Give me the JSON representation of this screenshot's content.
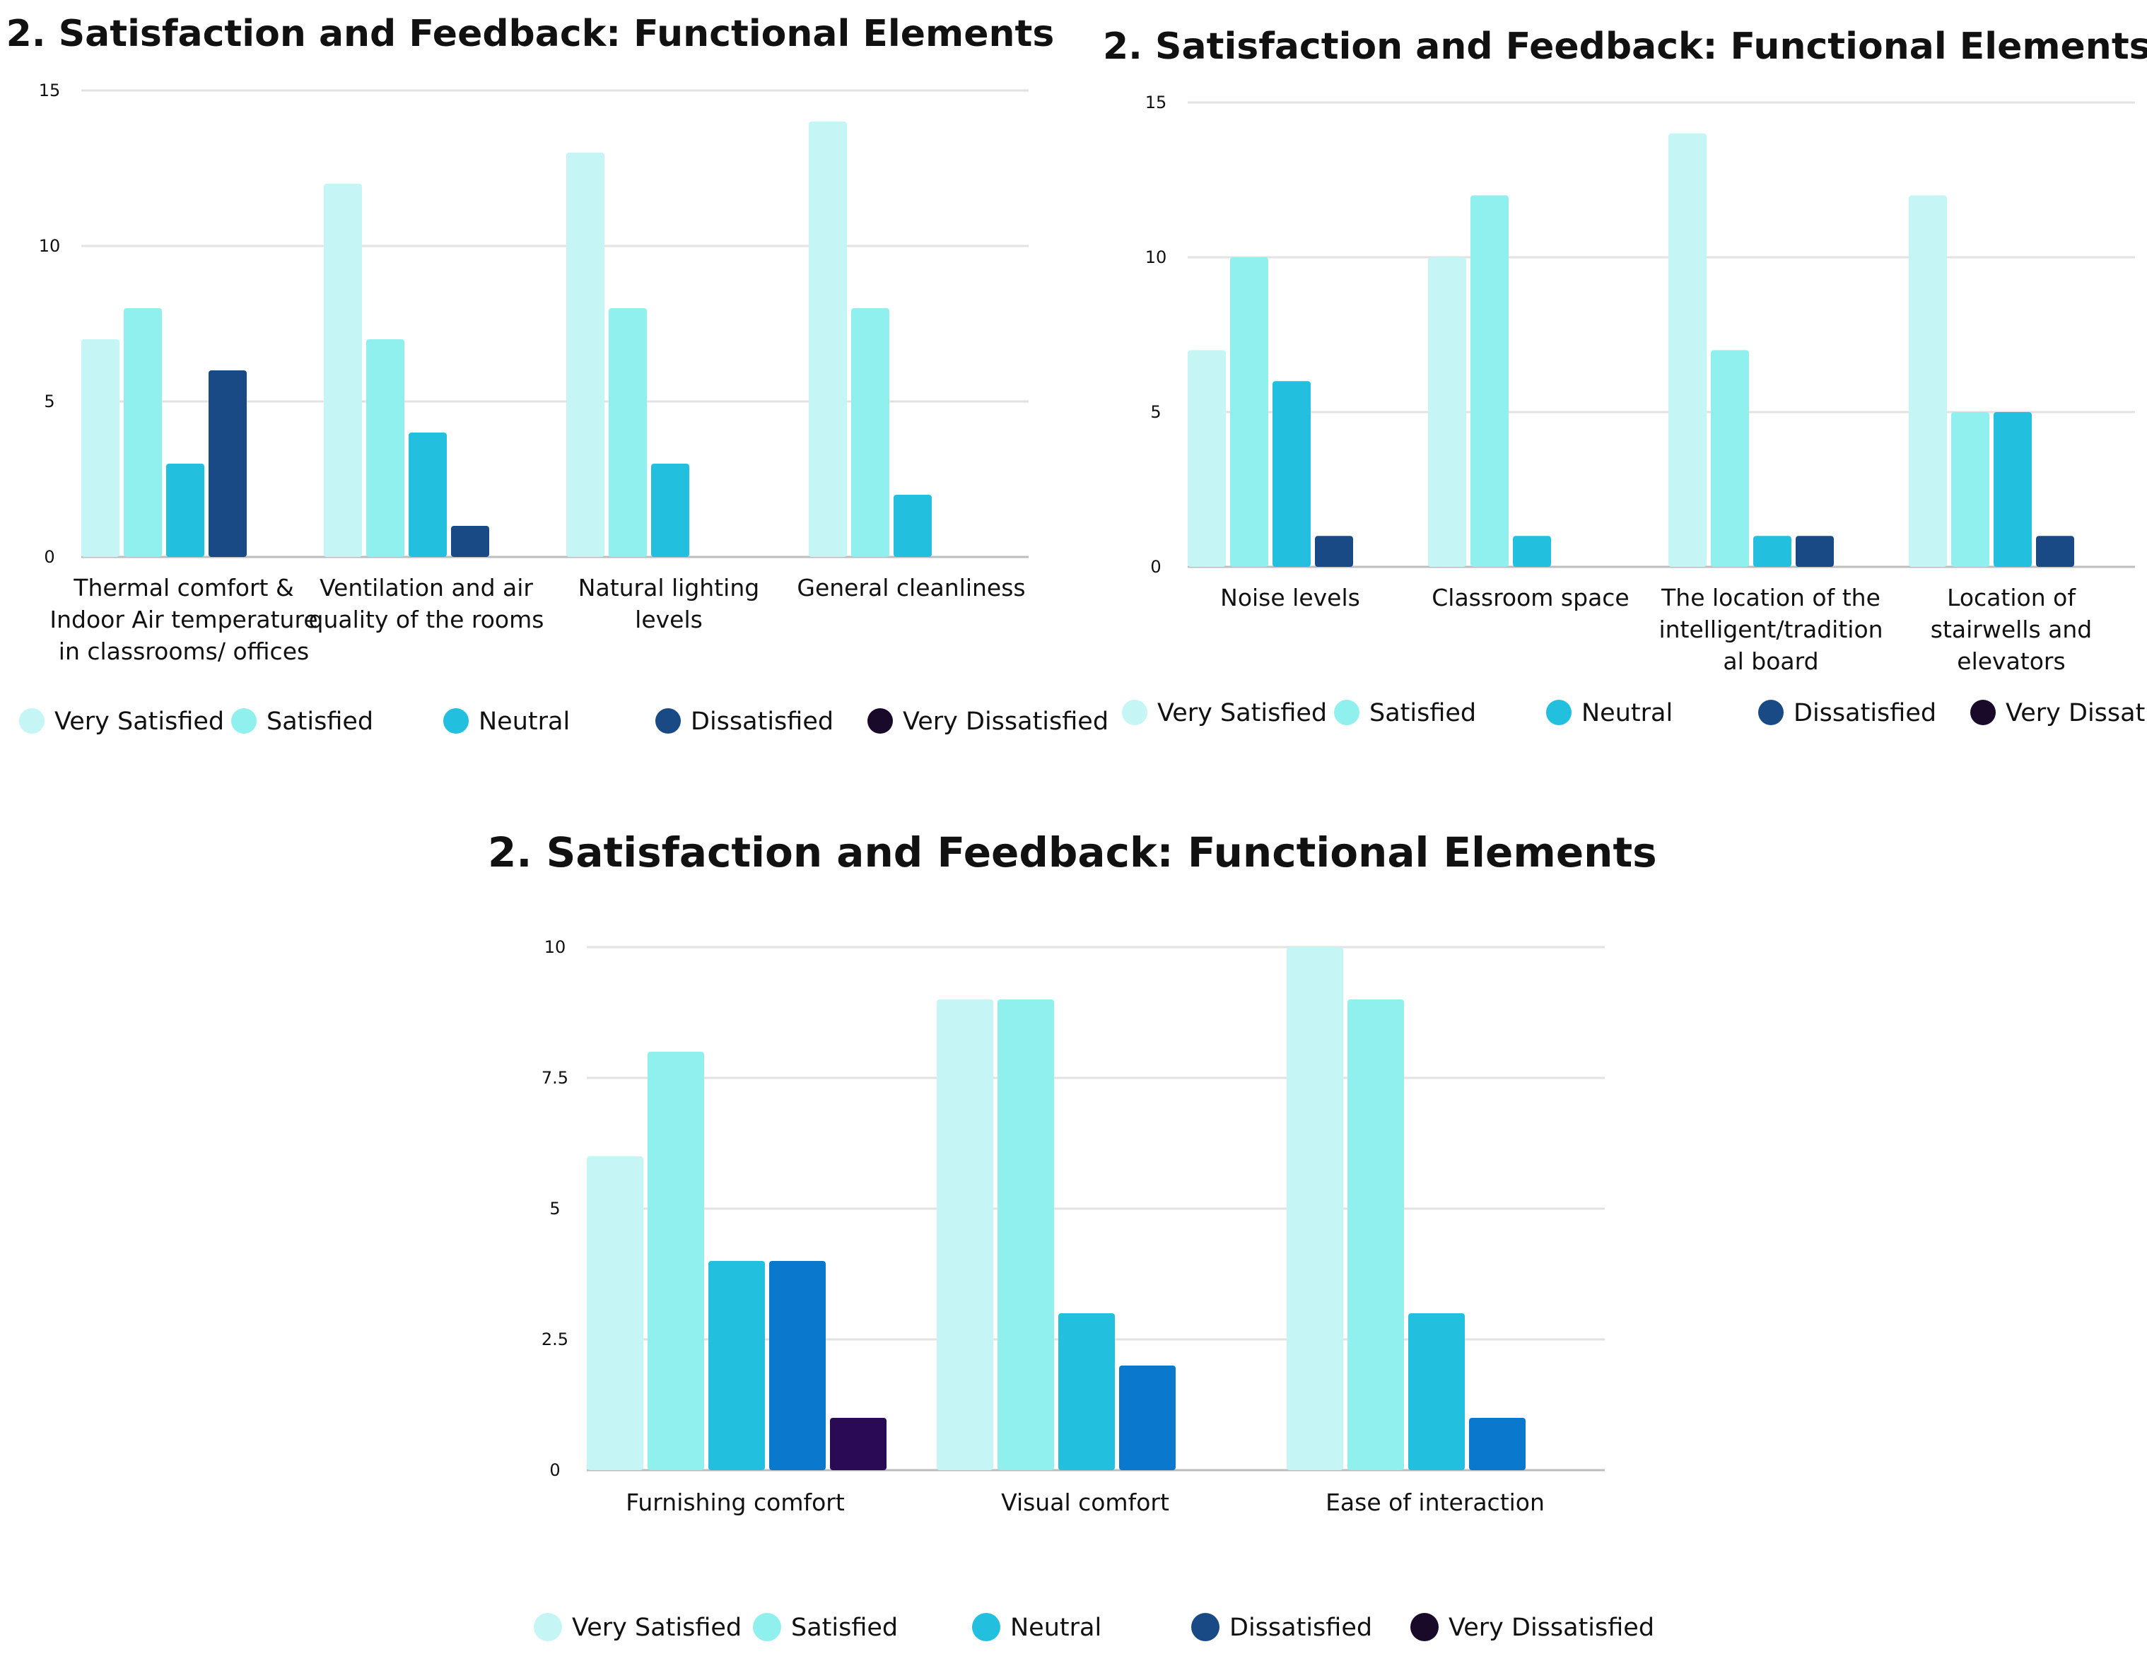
{
  "legend": {
    "series_names": [
      "Very Satisfied",
      "Satisfied",
      "Neutral",
      "Dissatisfied",
      "Very Dissatisfied"
    ],
    "colors": [
      "#c6f5f5",
      "#8ff0ee",
      "#22bfdf",
      "#1a4a85",
      "#1a0a2a"
    ]
  },
  "chart_data": [
    {
      "type": "bar",
      "title": "2. Satisfaction and Feedback: Functional Elements",
      "categories": [
        [
          "Thermal comfort &",
          "Indoor Air temperature",
          "in classrooms/ offices"
        ],
        [
          "Ventilation and air",
          "quality of the rooms"
        ],
        [
          "Natural lighting",
          "levels"
        ],
        [
          "General cleanliness"
        ]
      ],
      "series": [
        {
          "name": "Very Satisfied",
          "values": [
            7,
            12,
            13,
            14
          ]
        },
        {
          "name": "Satisfied",
          "values": [
            8,
            7,
            8,
            8
          ]
        },
        {
          "name": "Neutral",
          "values": [
            3,
            4,
            3,
            2
          ]
        },
        {
          "name": "Dissatisfied",
          "values": [
            6,
            1,
            0,
            0
          ]
        },
        {
          "name": "Very Dissatisfied",
          "values": [
            0,
            0,
            0,
            0
          ]
        }
      ],
      "colors": [
        "#c6f5f5",
        "#8ff0ee",
        "#22bfdf",
        "#1a4a85",
        "#1a0a2a"
      ],
      "ylim": [
        0,
        15
      ],
      "yticks": [
        0,
        5,
        10,
        15
      ],
      "xlabel": "",
      "ylabel": "",
      "grid": true,
      "legend": "bottom"
    },
    {
      "type": "bar",
      "title": "2. Satisfaction and Feedback: Functional Elements",
      "categories": [
        [
          "Noise levels"
        ],
        [
          "Classroom space"
        ],
        [
          "The location of the",
          "intelligent/tradition",
          "al board"
        ],
        [
          "Location of",
          "stairwells and",
          "elevators"
        ]
      ],
      "series": [
        {
          "name": "Very Satisfied",
          "values": [
            7,
            10,
            14,
            12
          ]
        },
        {
          "name": "Satisfied",
          "values": [
            10,
            12,
            7,
            5
          ]
        },
        {
          "name": "Neutral",
          "values": [
            6,
            1,
            1,
            5
          ]
        },
        {
          "name": "Dissatisfied",
          "values": [
            1,
            0,
            1,
            1
          ]
        },
        {
          "name": "Very Dissatisfied",
          "values": [
            0,
            0,
            0,
            0
          ]
        }
      ],
      "colors": [
        "#c6f5f5",
        "#8ff0ee",
        "#22bfdf",
        "#1a4a85",
        "#1a0a2a"
      ],
      "ylim": [
        0,
        15
      ],
      "yticks": [
        0,
        5,
        10,
        15
      ],
      "xlabel": "",
      "ylabel": "",
      "grid": true,
      "legend": "bottom"
    },
    {
      "type": "bar",
      "title": "2. Satisfaction and Feedback: Functional Elements",
      "categories": [
        [
          "Furnishing comfort"
        ],
        [
          "Visual comfort"
        ],
        [
          "Ease of interaction"
        ]
      ],
      "series": [
        {
          "name": "Very Satisfied",
          "values": [
            6,
            9,
            10
          ]
        },
        {
          "name": "Satisfied",
          "values": [
            8,
            9,
            9
          ]
        },
        {
          "name": "Neutral",
          "values": [
            4,
            3,
            3
          ]
        },
        {
          "name": "Dissatisfied",
          "values": [
            4,
            2,
            1
          ]
        },
        {
          "name": "Very Dissatisfied",
          "values": [
            1,
            0,
            0
          ]
        }
      ],
      "colors": [
        "#c6f5f5",
        "#8ff0ee",
        "#22bfdf",
        "#0a78cc",
        "#2a0a55"
      ],
      "legend_colors": [
        "#c6f5f5",
        "#8ff0ee",
        "#22bfdf",
        "#1a4a85",
        "#1a0a2a"
      ],
      "ylim": [
        0,
        10
      ],
      "yticks": [
        0,
        2.5,
        5,
        7.5,
        10
      ],
      "xlabel": "",
      "ylabel": "",
      "grid": true,
      "legend": "bottom"
    }
  ]
}
